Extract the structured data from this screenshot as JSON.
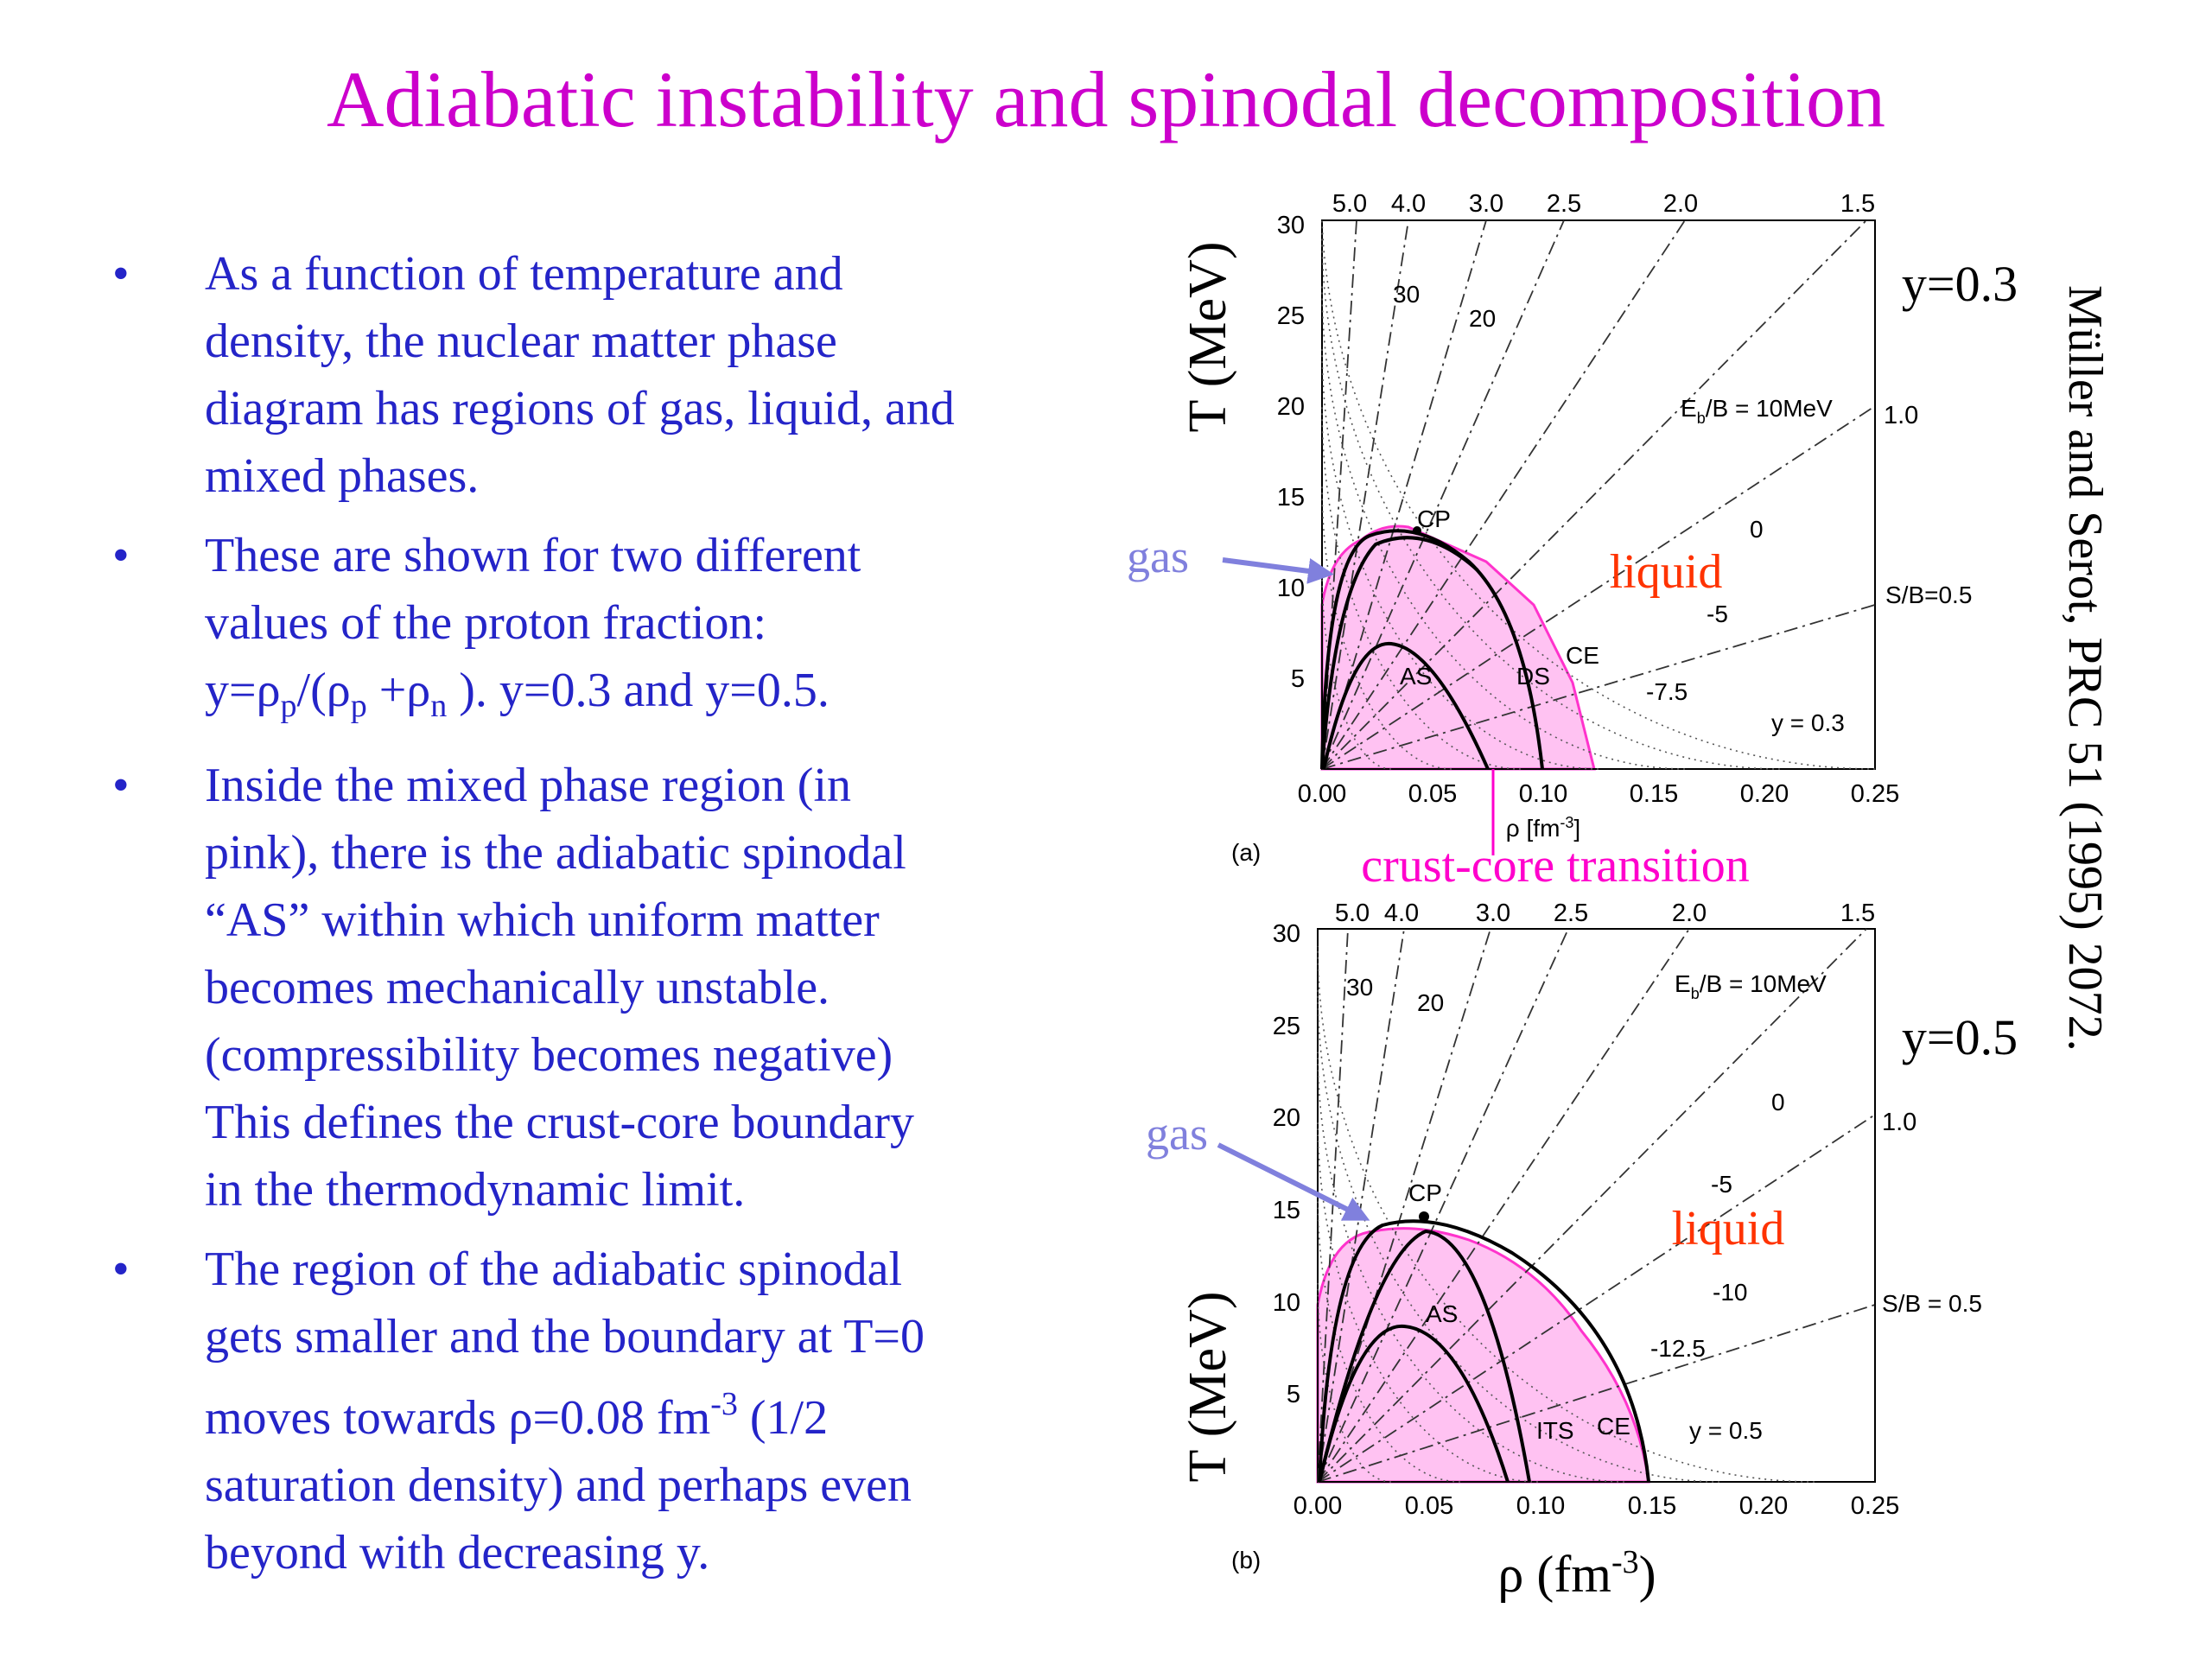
{
  "title": "Adiabatic instability and spinodal decomposition",
  "bullet_symbol": "•",
  "bullets": {
    "b1": {
      "lines": [
        "As a function of temperature and",
        "density, the nuclear matter phase",
        "diagram has regions of gas, liquid, and",
        "mixed phases."
      ]
    },
    "b2": {
      "lines": [
        "These are shown for two different",
        "values of the proton fraction:"
      ],
      "formula": {
        "a": "y=ρ",
        "p1": "p",
        "b": "/(ρ",
        "p2": "p",
        "c": " +ρ",
        "n": "n",
        "d": " ). y=0.3 and y=0.5."
      }
    },
    "b3": {
      "lines": [
        "Inside the mixed phase region (in",
        "pink), there is the adiabatic spinodal",
        "“AS” within which uniform matter",
        "becomes mechanically unstable.",
        "(compressibility becomes negative)",
        "This defines the crust-core boundary",
        "in the thermodynamic limit."
      ]
    },
    "b4": {
      "lines": [
        "The region of the adiabatic spinodal",
        "gets smaller and the boundary at T=0"
      ],
      "line3": {
        "a": "moves towards ρ=0.08 fm",
        "sup": "-3",
        "b": " (1/2"
      },
      "lines_end": [
        "saturation density) and perhaps even",
        "beyond with decreasing y."
      ]
    }
  },
  "citation": "Müller and Serot, PRC  51 (1995) 2072.",
  "colors": {
    "title": "#cc00cc",
    "text": "#2424c8",
    "gas": "#8080dd",
    "liquid": "#ff3300",
    "mixed_fill": "#ffc2f2",
    "mixed_edge": "#ff33cc",
    "crust_core": "#ff00cc"
  },
  "panel_a": {
    "y_label": "y=0.3",
    "axis_ylabel": "T (MeV)",
    "x_ticks": [
      "0.00",
      "0.05",
      "0.10",
      "0.15",
      "0.20",
      "0.25"
    ],
    "y_ticks": [
      "30",
      "25",
      "20",
      "15",
      "10",
      "5"
    ],
    "xlabel": "ρ  [fm",
    "xlabel_sup": "-3",
    "xlabel_end": "]",
    "top_ticks": [
      "5.0",
      "4.0",
      "3.0",
      "2.5",
      "2.0",
      "1.5"
    ],
    "right_ticks": [
      "1.0"
    ],
    "labels": {
      "entropy_30": "30",
      "entropy_20": "20",
      "ebb": "E",
      "ebb_sub": "b",
      "ebb_end": "/B = 10MeV",
      "e0": "0",
      "e5": "-5",
      "e75": "-7.5",
      "sb": "S/B=0.5",
      "yfrac": "y = 0.3",
      "cp": "CP",
      "as": "AS",
      "ds": "DS",
      "ce": "CE",
      "tag": "(a)"
    },
    "gas": "gas",
    "liquid": "liquid",
    "crust_core": "crust-core transition"
  },
  "panel_b": {
    "y_label": "y=0.5",
    "axis_ylabel": "T (MeV)",
    "x_ticks": [
      "0.00",
      "0.05",
      "0.10",
      "0.15",
      "0.20",
      "0.25"
    ],
    "y_ticks": [
      "30",
      "25",
      "20",
      "15",
      "10",
      "5"
    ],
    "top_ticks": [
      "5.0",
      "4.0",
      "3.0",
      "2.5",
      "2.0",
      "1.5"
    ],
    "right_ticks": [
      "1.0"
    ],
    "labels": {
      "entropy_30": "30",
      "entropy_20": "20",
      "ebb": "E",
      "ebb_sub": "b",
      "ebb_end": "/B = 10MeV",
      "e0": "0",
      "e5": "-5",
      "e10": "-10",
      "e125": "-12.5",
      "sb": "S/B = 0.5",
      "yfrac": "y = 0.5",
      "cp": "CP",
      "as": "AS",
      "its": "ITS",
      "ce": "CE",
      "tag": "(b)"
    },
    "gas": "gas",
    "liquid": "liquid",
    "xlabel": "ρ (fm",
    "xlabel_sup": "-3",
    "xlabel_end": ")"
  }
}
